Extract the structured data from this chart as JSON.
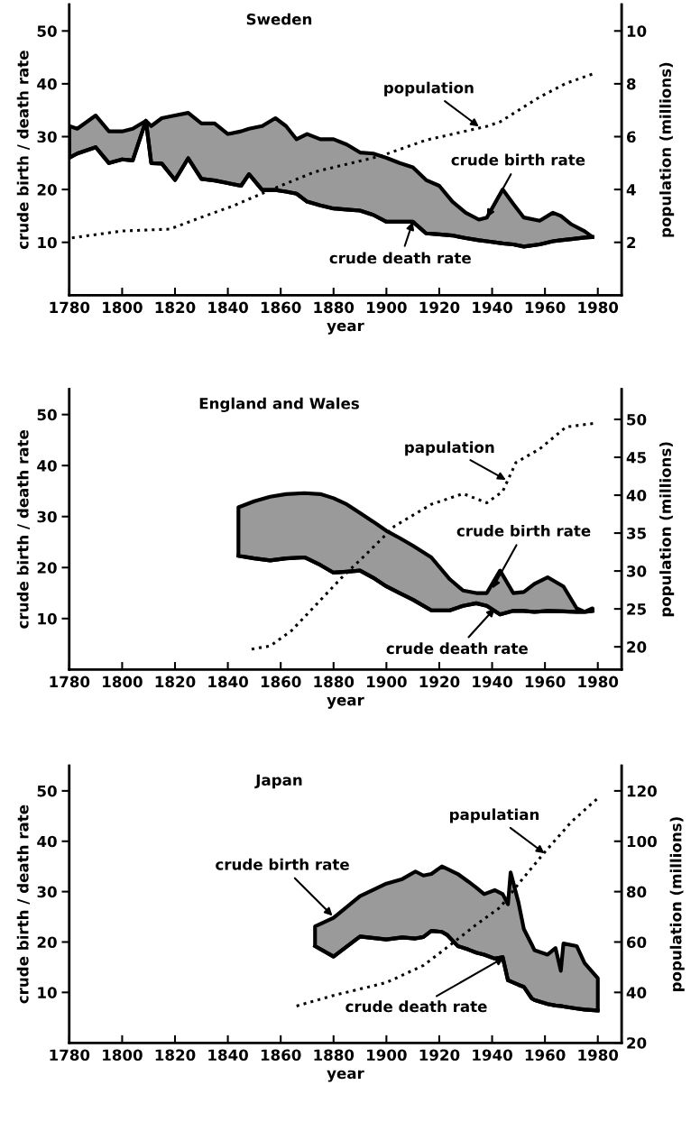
{
  "chart_data": [
    {
      "type": "line",
      "title": "Sweden",
      "xlabel": "year",
      "ylabel": "crude birth / death rate",
      "y2label": "population (millions)",
      "xlim": [
        1780,
        1989
      ],
      "xticks": [
        1780,
        1800,
        1820,
        1840,
        1860,
        1880,
        1900,
        1920,
        1940,
        1960,
        1980
      ],
      "ylim": [
        0,
        55
      ],
      "yticks": [
        10,
        20,
        30,
        40,
        50
      ],
      "y2lim": [
        0,
        11
      ],
      "y2ticks": [
        2,
        4,
        6,
        8,
        10
      ],
      "grid": false,
      "legend": false,
      "series": [
        {
          "type": "line",
          "color": "#000000",
          "line_style": "solid",
          "x": [
            1780,
            1783,
            1790,
            1795,
            1800,
            1804,
            1809,
            1811,
            1815,
            1820,
            1825,
            1830,
            1835,
            1840,
            1845,
            1848,
            1853,
            1858,
            1862,
            1866,
            1870,
            1875,
            1880,
            1885,
            1890,
            1895,
            1900,
            1905,
            1910,
            1915,
            1920,
            1925,
            1930,
            1935,
            1938,
            1944,
            1948,
            1952,
            1958,
            1963,
            1966,
            1970,
            1975,
            1978
          ],
          "values": [
            26,
            26.8,
            28,
            25,
            25.7,
            25.5,
            33,
            25,
            24.9,
            21.8,
            25.9,
            22,
            21.7,
            21.2,
            20.7,
            22.9,
            19.9,
            19.9,
            19.6,
            19.2,
            17.7,
            17,
            16.4,
            16.2,
            16,
            15.2,
            13.9,
            13.9,
            13.9,
            11.7,
            11.5,
            11.3,
            10.8,
            10.4,
            10.2,
            9.8,
            9.6,
            9.2,
            9.6,
            10.2,
            10.4,
            10.6,
            10.9,
            11
          ]
        },
        {
          "type": "area",
          "color": "#9a9a9a",
          "x": [
            1780,
            1783,
            1790,
            1795,
            1800,
            1804,
            1809,
            1811,
            1815,
            1820,
            1825,
            1830,
            1835,
            1840,
            1845,
            1848,
            1853,
            1858,
            1862,
            1866,
            1870,
            1875,
            1880,
            1885,
            1890,
            1895,
            1900,
            1905,
            1910,
            1915,
            1920,
            1925,
            1930,
            1935,
            1938,
            1944,
            1948,
            1952,
            1958,
            1963,
            1966,
            1970,
            1975,
            1978
          ],
          "values": [
            32,
            31.5,
            34,
            31,
            31,
            31.5,
            33,
            32,
            33.5,
            34,
            34.5,
            32.5,
            32.5,
            30.5,
            31,
            31.5,
            32,
            33.5,
            32,
            29.5,
            30.5,
            29.5,
            29.5,
            28.5,
            27,
            26.8,
            26,
            25,
            24.2,
            21.8,
            20.7,
            17.7,
            15.6,
            14.3,
            14.7,
            20,
            17.3,
            14.7,
            14.1,
            15.6,
            15,
            13.4,
            12.1,
            11
          ]
        },
        {
          "type": "line",
          "axis": "y2",
          "color": "#000000",
          "line_style": "dotted",
          "marker": "none",
          "x": [
            1781,
            1800,
            1818,
            1830,
            1842,
            1856,
            1873,
            1898,
            1915,
            1938,
            1943,
            1958,
            1968,
            1978
          ],
          "values": [
            2.17,
            2.43,
            2.5,
            2.95,
            3.38,
            3.98,
            4.67,
            5.27,
            5.87,
            6.39,
            6.56,
            7.5,
            8.02,
            8.37
          ]
        }
      ],
      "annotations": [
        {
          "text": "population",
          "x": 1935,
          "y": 31.9
        },
        {
          "text": "crude birth rate",
          "x": 1938,
          "y": 14.7
        },
        {
          "text": "crude death rate",
          "x": 1910,
          "y": 13.9
        }
      ]
    },
    {
      "type": "line",
      "title": "England and Wales",
      "xlabel": "year",
      "ylabel": "crude birth / death rate",
      "y2label": "population (millions)",
      "xlim": [
        1780,
        1989
      ],
      "xticks": [
        1780,
        1800,
        1820,
        1840,
        1860,
        1880,
        1900,
        1920,
        1940,
        1960,
        1980
      ],
      "ylim": [
        0,
        55
      ],
      "yticks": [
        10,
        20,
        30,
        40,
        50
      ],
      "y2lim": [
        17,
        54
      ],
      "y2ticks": [
        20,
        25,
        30,
        35,
        40,
        45,
        50
      ],
      "grid": false,
      "legend": false,
      "series": [
        {
          "type": "line",
          "color": "#000000",
          "line_style": "solid",
          "x": [
            1844,
            1850,
            1856,
            1862,
            1869,
            1875,
            1880,
            1885,
            1890,
            1895,
            1900,
            1905,
            1910,
            1917,
            1924,
            1929,
            1934,
            1938,
            1943,
            1948,
            1952,
            1956,
            1961,
            1967,
            1972,
            1975,
            1978
          ],
          "values": [
            22.3,
            21.8,
            21.4,
            21.8,
            22,
            20.5,
            19,
            19.2,
            19.4,
            18,
            16.3,
            15,
            13.7,
            11.6,
            11.6,
            12.5,
            13,
            12.5,
            10.8,
            11.5,
            11.5,
            11.3,
            11.5,
            11.4,
            11.3,
            11.3,
            11.5
          ]
        },
        {
          "type": "area",
          "color": "#9a9a9a",
          "x": [
            1844,
            1850,
            1856,
            1862,
            1869,
            1875,
            1880,
            1885,
            1890,
            1895,
            1900,
            1905,
            1910,
            1917,
            1924,
            1929,
            1934,
            1938,
            1943,
            1948,
            1952,
            1956,
            1961,
            1967,
            1972,
            1975,
            1978
          ],
          "values": [
            31.8,
            33,
            33.9,
            34.4,
            34.6,
            34.4,
            33.6,
            32.4,
            30.7,
            29,
            27.2,
            25.8,
            24.3,
            22,
            17.7,
            15.5,
            15,
            15,
            19.4,
            15,
            15.2,
            16.8,
            18.1,
            16.3,
            12,
            11.3,
            12
          ]
        },
        {
          "type": "line",
          "axis": "y2",
          "color": "#000000",
          "line_style": "dotted",
          "marker": "none",
          "x": [
            1849,
            1856,
            1864,
            1873,
            1883,
            1892,
            1903,
            1917,
            1929,
            1938,
            1944,
            1949,
            1958,
            1968,
            1979
          ],
          "values": [
            19.7,
            20.1,
            22.1,
            25.4,
            29.1,
            32.1,
            35.9,
            38.8,
            40.2,
            39,
            40.5,
            44.3,
            46.1,
            49,
            49.5
          ]
        }
      ],
      "annotations": [
        {
          "text": "papulation",
          "x": 1945.2,
          "y": 37.2
        },
        {
          "text": "crude birth rate",
          "x": 1940.1,
          "y": 15.9
        },
        {
          "text": "crude death rate",
          "x": 1941,
          "y": 12
        }
      ]
    },
    {
      "type": "line",
      "title": "Japan",
      "xlabel": "year",
      "ylabel": "crude birth / death rate",
      "y2label": "population (millions)",
      "xlim": [
        1780,
        1989
      ],
      "xticks": [
        1780,
        1800,
        1820,
        1840,
        1860,
        1880,
        1900,
        1920,
        1940,
        1960,
        1980
      ],
      "ylim": [
        0,
        55
      ],
      "yticks": [
        10,
        20,
        30,
        40,
        50
      ],
      "y2lim": [
        20,
        130
      ],
      "y2ticks": [
        20,
        40,
        60,
        80,
        100,
        120
      ],
      "grid": false,
      "legend": false,
      "series": [
        {
          "type": "line",
          "color": "#000000",
          "line_style": "solid",
          "x": [
            1873,
            1880,
            1890,
            1900,
            1906,
            1911,
            1914,
            1917,
            1921,
            1923,
            1927,
            1931,
            1934,
            1937,
            1941,
            1944,
            1946,
            1947,
            1950,
            1952,
            1955,
            1956,
            1961,
            1964,
            1966,
            1967,
            1972,
            1975,
            1980
          ],
          "values": [
            19.2,
            17.1,
            21.1,
            20.5,
            20.9,
            20.7,
            21,
            22.2,
            22,
            21.4,
            19.2,
            18.5,
            17.9,
            17.5,
            16.7,
            17,
            12.4,
            12.2,
            11.5,
            11.1,
            8.8,
            8.5,
            7.7,
            7.4,
            7.3,
            7.2,
            6.8,
            6.6,
            6.4
          ]
        },
        {
          "type": "area",
          "color": "#9a9a9a",
          "x": [
            1873,
            1880,
            1890,
            1900,
            1906,
            1911,
            1914,
            1917,
            1921,
            1923,
            1927,
            1931,
            1934,
            1937,
            1941,
            1944,
            1946,
            1947,
            1950,
            1952,
            1955,
            1956,
            1961,
            1964,
            1966,
            1967,
            1972,
            1975,
            1980
          ],
          "values": [
            23.1,
            24.8,
            29.1,
            31.6,
            32.5,
            34,
            33.2,
            33.5,
            35,
            34.5,
            33.5,
            32,
            30.8,
            29.5,
            30.3,
            29.5,
            27.5,
            33.8,
            27.8,
            22.6,
            19.5,
            18.4,
            17.5,
            18.8,
            14.3,
            19.7,
            19.2,
            15.8,
            12.8
          ]
        },
        {
          "type": "line",
          "axis": "y2",
          "color": "#000000",
          "line_style": "dotted",
          "marker": "none",
          "x": [
            1866,
            1880,
            1900,
            1914,
            1924,
            1934,
            1943,
            1950,
            1960,
            1970,
            1980
          ],
          "values": [
            34.6,
            38.8,
            43.9,
            50.7,
            58.7,
            66.9,
            73.7,
            83.1,
            95.8,
            107.7,
            117.1
          ]
        }
      ],
      "annotations": [
        {
          "text": "papulatian",
          "x": 1959.8,
          "y": 37.6
        },
        {
          "text": "crude birth rate",
          "x": 1879.6,
          "y": 25.2
        },
        {
          "text": "crude death rate",
          "x": 1944.5,
          "y": 16.9
        }
      ]
    }
  ]
}
